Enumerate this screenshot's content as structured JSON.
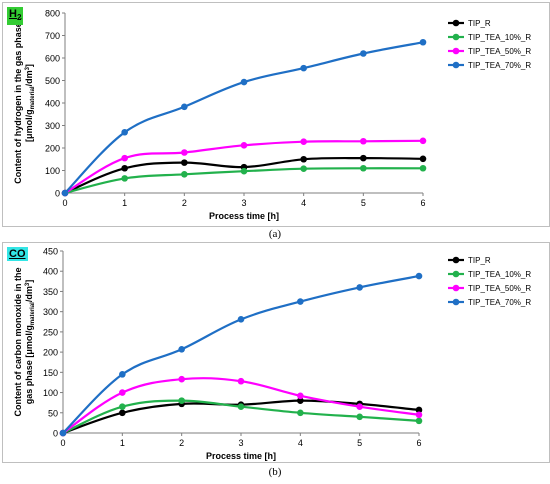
{
  "charts": [
    {
      "id": "a",
      "badge": "H2",
      "badge_color": "#33cc33",
      "caption": "(a)",
      "chart_data": {
        "type": "line",
        "x": [
          0,
          1,
          2,
          3,
          4,
          5,
          6
        ],
        "xlabel": "Process time [h]",
        "ylabel_line1": "Content of hydrogen in the gas phase",
        "ylabel_line2": "[μmol/g",
        "ylabel_sub": "material",
        "ylabel_end": "/dm",
        "ylabel_sup": "3",
        "ylabel_close": "]",
        "xlim": [
          0,
          6
        ],
        "ylim": [
          0,
          800
        ],
        "yticks": [
          0,
          100,
          200,
          300,
          400,
          500,
          600,
          700,
          800
        ],
        "xticks": [
          0,
          1,
          2,
          3,
          4,
          5,
          6
        ],
        "grid": false,
        "legend": "right",
        "series": [
          {
            "name": "TIP_R",
            "color": "#000000",
            "values": [
              0,
              110,
              135,
              115,
              150,
              155,
              152
            ]
          },
          {
            "name": "TIP_TEA_10%_R",
            "color": "#22b14c",
            "values": [
              0,
              65,
              83,
              97,
              108,
              110,
              110
            ]
          },
          {
            "name": "TIP_TEA_50%_R",
            "color": "#ff00ff",
            "values": [
              0,
              155,
              180,
              212,
              228,
              230,
              232
            ]
          },
          {
            "name": "TIP_TEA_70%_R",
            "color": "#1f6fc5",
            "values": [
              0,
              270,
              383,
              493,
              555,
              620,
              670
            ]
          }
        ]
      }
    },
    {
      "id": "b",
      "badge": "CO",
      "badge_color": "#33e6e6",
      "caption": "(b)",
      "chart_data": {
        "type": "line",
        "x": [
          0,
          1,
          2,
          3,
          4,
          5,
          6
        ],
        "xlabel": "Process time [h]",
        "ylabel_line1": "Content of carbon monoxide in the",
        "ylabel_line2": "gas phase [μmol/g",
        "ylabel_sub": "material",
        "ylabel_end": "/dm",
        "ylabel_sup": "3",
        "ylabel_close": "]",
        "xlim": [
          0,
          6
        ],
        "ylim": [
          0,
          450
        ],
        "yticks": [
          0,
          50,
          100,
          150,
          200,
          250,
          300,
          350,
          400,
          450
        ],
        "xticks": [
          0,
          1,
          2,
          3,
          4,
          5,
          6
        ],
        "grid": false,
        "legend": "right",
        "series": [
          {
            "name": "TIP_R",
            "color": "#000000",
            "values": [
              0,
              50,
              72,
              70,
              80,
              72,
              57
            ]
          },
          {
            "name": "TIP_TEA_10%_R",
            "color": "#22b14c",
            "values": [
              0,
              65,
              80,
              65,
              50,
              40,
              30
            ]
          },
          {
            "name": "TIP_TEA_50%_R",
            "color": "#ff00ff",
            "values": [
              0,
              100,
              133,
              128,
              92,
              65,
              45
            ]
          },
          {
            "name": "TIP_TEA_70%_R",
            "color": "#1f6fc5",
            "values": [
              0,
              145,
              207,
              281,
              325,
              360,
              388
            ]
          }
        ]
      }
    }
  ]
}
